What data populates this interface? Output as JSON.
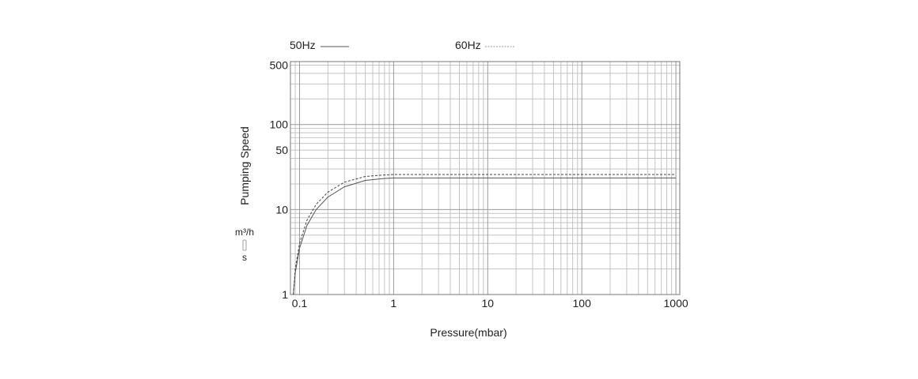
{
  "chart_data": {
    "type": "line",
    "xlabel": "Pressure(mbar)",
    "ylabel": "Pumping Speed",
    "ylabel_units": [
      "m³/h",
      "s"
    ],
    "x_scale": "log",
    "y_scale": "log",
    "xlim": [
      0.08,
      1100
    ],
    "ylim": [
      1,
      550
    ],
    "grid": true,
    "legend_position": "top",
    "xticks": [
      {
        "value": 0.1,
        "label": "0.1"
      },
      {
        "value": 1,
        "label": "1"
      },
      {
        "value": 10,
        "label": "10"
      },
      {
        "value": 100,
        "label": "100"
      },
      {
        "value": 1000,
        "label": "1000"
      }
    ],
    "yticks": [
      {
        "value": 1,
        "label": "1"
      },
      {
        "value": 10,
        "label": "10"
      },
      {
        "value": 50,
        "label": "50"
      },
      {
        "value": 100,
        "label": "100"
      },
      {
        "value": 500,
        "label": "500"
      }
    ],
    "series": [
      {
        "name": "50Hz",
        "color": "#555555",
        "style": "solid",
        "x": [
          0.086,
          0.09,
          0.1,
          0.12,
          0.15,
          0.2,
          0.3,
          0.5,
          0.8,
          1.0,
          2,
          10,
          100,
          1000
        ],
        "y": [
          1.0,
          1.8,
          3.5,
          6.5,
          10.0,
          14.0,
          18.5,
          22.0,
          23.2,
          23.5,
          23.5,
          23.5,
          23.5,
          23.5
        ]
      },
      {
        "name": "60Hz",
        "color": "#444444",
        "style": "dashed",
        "x": [
          0.086,
          0.09,
          0.1,
          0.12,
          0.15,
          0.2,
          0.3,
          0.5,
          0.8,
          1.0,
          2,
          10,
          100,
          1000
        ],
        "y": [
          1.0,
          2.0,
          4.0,
          7.5,
          11.5,
          16.0,
          21.0,
          24.5,
          25.5,
          25.8,
          25.8,
          25.8,
          25.8,
          25.8
        ]
      }
    ]
  }
}
